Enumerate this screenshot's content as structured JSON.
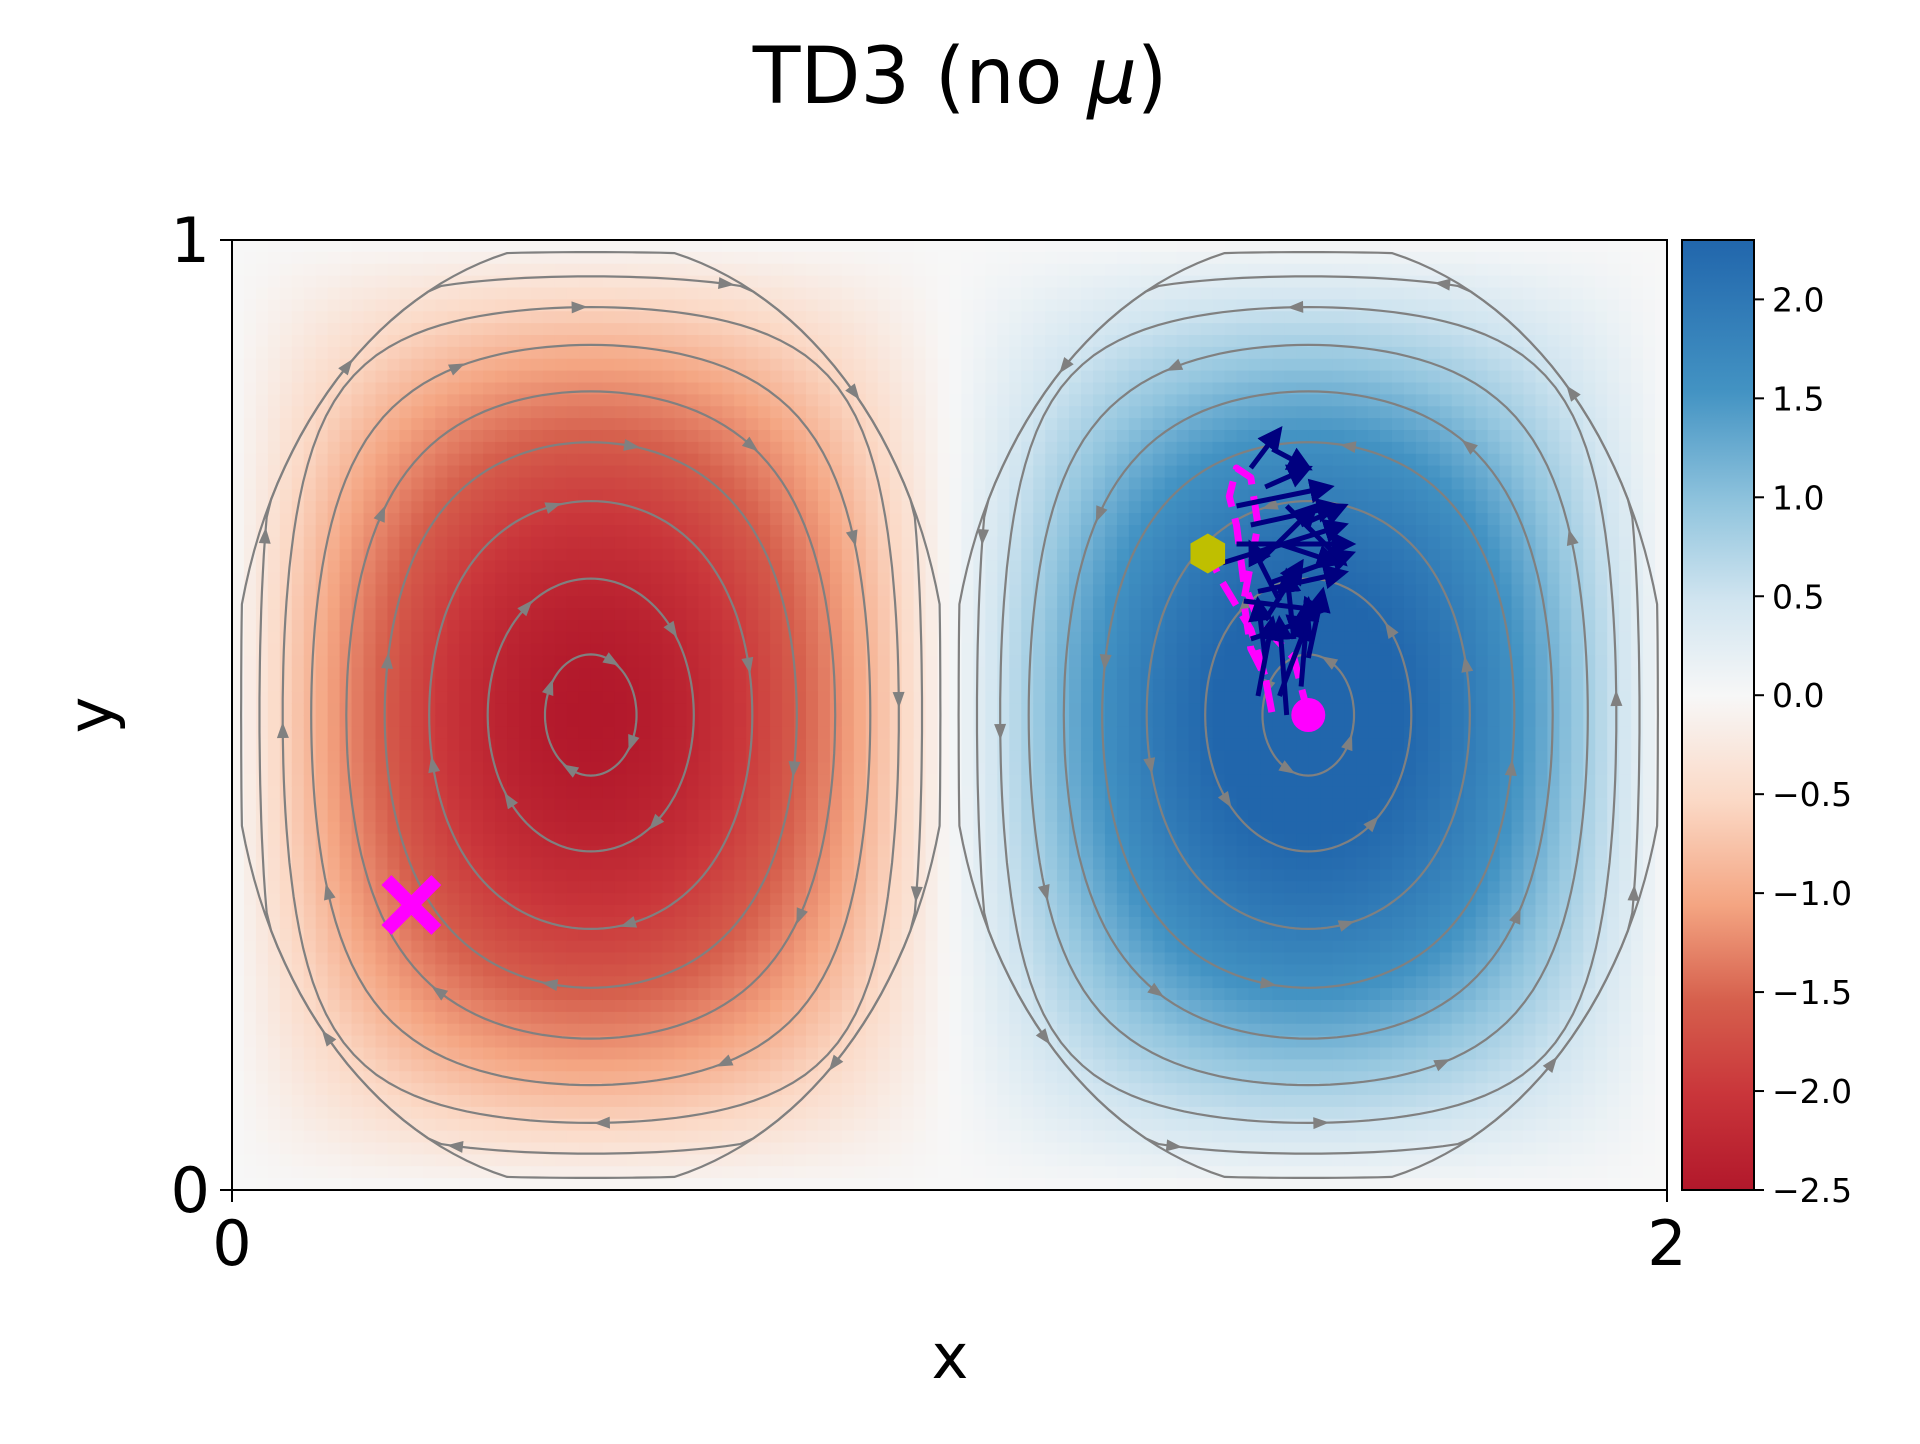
{
  "chart_data": {
    "type": "heatmap",
    "title_main": "TD3 (no ",
    "title_symbol": "μ",
    "title_end": ")",
    "xlabel": "x",
    "ylabel": "y",
    "xlim": [
      0,
      2
    ],
    "ylim": [
      0,
      1
    ],
    "x_ticks": [
      {
        "value": 0,
        "label": "0"
      },
      {
        "value": 2,
        "label": "2"
      }
    ],
    "y_ticks": [
      {
        "value": 0,
        "label": "0"
      },
      {
        "value": 1,
        "label": "1"
      }
    ],
    "field": {
      "description_formula": "vorticity = A * sin(pi*x) * sin(pi*y)",
      "amplitude": -2.5,
      "colormap": "RdBu"
    },
    "colorbar": {
      "range": [
        -2.5,
        2.3
      ],
      "ticks": [
        {
          "value": 2.0,
          "label": "2.0"
        },
        {
          "value": 1.5,
          "label": "1.5"
        },
        {
          "value": 1.0,
          "label": "1.0"
        },
        {
          "value": 0.5,
          "label": "0.5"
        },
        {
          "value": 0.0,
          "label": "0.0"
        },
        {
          "value": -0.5,
          "label": "−0.5"
        },
        {
          "value": -1.0,
          "label": "−1.0"
        },
        {
          "value": -1.5,
          "label": "−1.5"
        },
        {
          "value": -2.0,
          "label": "−2.0"
        },
        {
          "value": -2.5,
          "label": "−2.5"
        }
      ]
    },
    "streamlines": {
      "color": "#808080",
      "left_cell_levels": [
        0.04,
        0.12,
        0.22,
        0.34,
        0.48,
        0.62,
        0.76,
        0.9,
        0.98
      ],
      "right_cell_levels": [
        0.04,
        0.12,
        0.22,
        0.34,
        0.48,
        0.62,
        0.76,
        0.9,
        0.98
      ]
    },
    "markers": {
      "target": {
        "x": 0.25,
        "y": 0.3,
        "color": "#ff00ff",
        "symbol": "x"
      },
      "start": {
        "x": 1.5,
        "y": 0.5,
        "color": "#ff00ff",
        "symbol": "circle"
      },
      "end": {
        "x": 1.36,
        "y": 0.67,
        "color": "#bfbf00",
        "symbol": "hexagon"
      }
    },
    "trajectory": {
      "color": "#ff00ff",
      "points": [
        [
          1.5,
          0.5
        ],
        [
          1.48,
          0.56
        ],
        [
          1.43,
          0.6
        ],
        [
          1.41,
          0.64
        ],
        [
          1.4,
          0.7
        ],
        [
          1.39,
          0.73
        ],
        [
          1.4,
          0.76
        ],
        [
          1.42,
          0.75
        ],
        [
          1.43,
          0.7
        ],
        [
          1.42,
          0.66
        ],
        [
          1.41,
          0.62
        ],
        [
          1.42,
          0.57
        ],
        [
          1.44,
          0.54
        ],
        [
          1.45,
          0.5
        ],
        [
          1.44,
          0.54
        ],
        [
          1.42,
          0.59
        ],
        [
          1.38,
          0.64
        ],
        [
          1.36,
          0.67
        ]
      ]
    },
    "arrows": {
      "color": "#00007f",
      "segments": [
        [
          1.47,
          0.5,
          1.46,
          0.6
        ],
        [
          1.43,
          0.52,
          1.45,
          0.6
        ],
        [
          1.46,
          0.52,
          1.5,
          0.6
        ],
        [
          1.44,
          0.56,
          1.43,
          0.62
        ],
        [
          1.49,
          0.53,
          1.5,
          0.62
        ],
        [
          1.42,
          0.58,
          1.5,
          0.6
        ],
        [
          1.41,
          0.62,
          1.52,
          0.61
        ],
        [
          1.43,
          0.63,
          1.55,
          0.65
        ],
        [
          1.45,
          0.64,
          1.56,
          0.67
        ],
        [
          1.38,
          0.66,
          1.55,
          0.7
        ],
        [
          1.4,
          0.68,
          1.56,
          0.68
        ],
        [
          1.42,
          0.7,
          1.54,
          0.72
        ],
        [
          1.4,
          0.72,
          1.53,
          0.74
        ],
        [
          1.44,
          0.74,
          1.5,
          0.76
        ],
        [
          1.42,
          0.76,
          1.46,
          0.8
        ],
        [
          1.45,
          0.78,
          1.5,
          0.76
        ],
        [
          1.47,
          0.72,
          1.55,
          0.66
        ],
        [
          1.46,
          0.62,
          1.42,
          0.68
        ],
        [
          1.48,
          0.58,
          1.47,
          0.65
        ],
        [
          1.44,
          0.6,
          1.49,
          0.66
        ],
        [
          1.5,
          0.56,
          1.52,
          0.63
        ],
        [
          1.43,
          0.66,
          1.51,
          0.72
        ],
        [
          1.46,
          0.68,
          1.54,
          0.66
        ],
        [
          1.49,
          0.7,
          1.55,
          0.72
        ]
      ]
    }
  }
}
